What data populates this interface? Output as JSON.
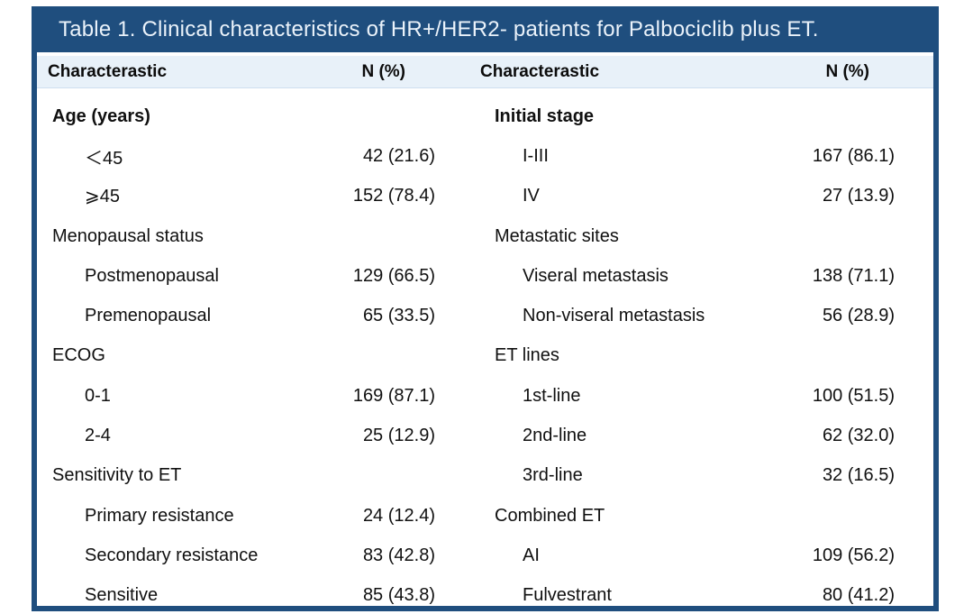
{
  "title": "Table 1. Clinical characteristics of HR+/HER2- patients for Palbociclib plus ET.",
  "colors": {
    "accent": "#1F4E7E",
    "header_bg": "#E8F1F9",
    "title_text": "#EAF2FA"
  },
  "columns": {
    "char_left": "Characterastic",
    "n_left": "N (%)",
    "char_right": "Characterastic",
    "n_right": "N (%)"
  },
  "rows": [
    {
      "left": {
        "label": "Age (years)",
        "value": ""
      },
      "right": {
        "label": "Initial stage",
        "value": ""
      }
    },
    {
      "left": {
        "label": "＜45",
        "value": "42 (21.6)"
      },
      "right": {
        "label": "I-III",
        "value": "167 (86.1)"
      }
    },
    {
      "left": {
        "label": "⩾45",
        "value": "152 (78.4)"
      },
      "right": {
        "label": "IV",
        "value": "27 (13.9)"
      }
    },
    {
      "left": {
        "label": "Menopausal status",
        "value": ""
      },
      "right": {
        "label": "Metastatic sites",
        "value": ""
      }
    },
    {
      "left": {
        "label": "Postmenopausal",
        "value": "129 (66.5)"
      },
      "right": {
        "label": "Viseral metastasis",
        "value": "138 (71.1)"
      }
    },
    {
      "left": {
        "label": "Premenopausal",
        "value": "65 (33.5)"
      },
      "right": {
        "label": "Non-viseral metastasis",
        "value": "56 (28.9)"
      }
    },
    {
      "left": {
        "label": "ECOG",
        "value": ""
      },
      "right": {
        "label": "ET lines",
        "value": ""
      }
    },
    {
      "left": {
        "label": "0-1",
        "value": "169 (87.1)"
      },
      "right": {
        "label": "1st-line",
        "value": "100 (51.5)"
      }
    },
    {
      "left": {
        "label": "2-4",
        "value": "25 (12.9)"
      },
      "right": {
        "label": "2nd-line",
        "value": "62 (32.0)"
      }
    },
    {
      "left": {
        "label": "Sensitivity to ET",
        "value": ""
      },
      "right": {
        "label": "3rd-line",
        "value": "32 (16.5)"
      }
    },
    {
      "left": {
        "label": "Primary resistance",
        "value": "24 (12.4)"
      },
      "right": {
        "label": "Combined ET",
        "value": ""
      }
    },
    {
      "left": {
        "label": "Secondary resistance",
        "value": "83 (42.8)"
      },
      "right": {
        "label": "AI",
        "value": "109 (56.2)"
      }
    },
    {
      "left": {
        "label": "Sensitive",
        "value": "85 (43.8)"
      },
      "right": {
        "label": "Fulvestrant",
        "value": "80 (41.2)"
      }
    }
  ]
}
